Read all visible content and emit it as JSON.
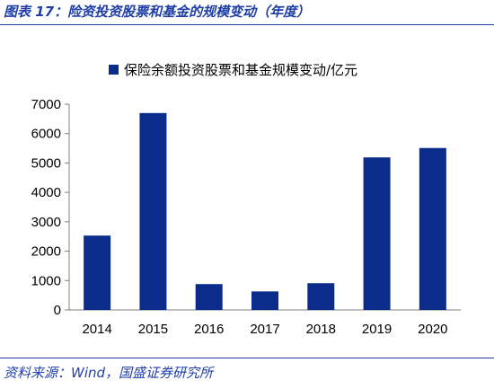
{
  "figure": {
    "title": "图表 17：险资投资股票和基金的规模变动（年度）",
    "source": "资料来源：Wind，国盛证券研究所"
  },
  "colors": {
    "bar": "#0c2c8c",
    "accent": "#1f3fa6"
  },
  "chart_data": {
    "type": "bar",
    "categories": [
      "2014",
      "2015",
      "2016",
      "2017",
      "2018",
      "2019",
      "2020"
    ],
    "series": [
      {
        "name": "保险余额投资股票和基金规模变动/亿元",
        "values": [
          2530,
          6700,
          880,
          630,
          910,
          5190,
          5510
        ]
      }
    ],
    "ylim": [
      0,
      7000
    ],
    "yticks": [
      0,
      1000,
      2000,
      3000,
      4000,
      5000,
      6000,
      7000
    ],
    "legend_position": "top",
    "grid": false
  }
}
